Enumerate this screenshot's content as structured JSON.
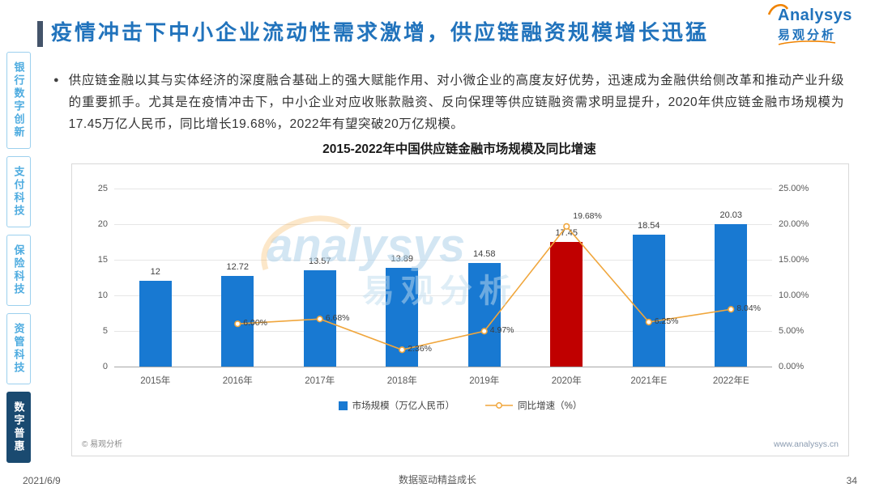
{
  "page": {
    "date": "2021/6/9",
    "slogan": "数据驱动精益成长",
    "number": "34"
  },
  "header": {
    "title": "疫情冲击下中小企业流动性需求激增，供应链融资规模增长迅猛",
    "logo_en": "Analysys",
    "logo_cn": "易观分析",
    "accent_color": "#44546A",
    "title_color": "#2173BC"
  },
  "sidebar": {
    "items": [
      {
        "id": "banking",
        "label": "银行数字创新",
        "active": false
      },
      {
        "id": "payment",
        "label": "支付科技",
        "active": false
      },
      {
        "id": "insurance",
        "label": "保险科技",
        "active": false
      },
      {
        "id": "asset",
        "label": "资管科技",
        "active": false
      },
      {
        "id": "inclusion",
        "label": "数字普惠",
        "active": true
      }
    ]
  },
  "body": {
    "bullet_glyph": "●",
    "bullet_text": "供应链金融以其与实体经济的深度融合基础上的强大赋能作用、对小微企业的高度友好优势，迅速成为金融供给侧改革和推动产业升级的重要抓手。尤其是在疫情冲击下，中小企业对应收账款融资、反向保理等供应链融资需求明显提升，2020年供应链金融市场规模为17.45万亿人民币，同比增长19.68%，2022年有望突破20万亿规模。"
  },
  "chart": {
    "source_left": "© 易观分析",
    "source_right": "www.analysys.cn",
    "watermark_en": "analysys",
    "watermark_cn": "易观分析"
  },
  "chart_data": {
    "type": "bar+line",
    "title": "2015-2022年中国供应链金融市场规模及同比增速",
    "categories": [
      "2015年",
      "2016年",
      "2017年",
      "2018年",
      "2019年",
      "2020年",
      "2021年E",
      "2022年E"
    ],
    "series": [
      {
        "name": "市场规模（万亿人民币）",
        "type": "bar",
        "axis": "left",
        "values": [
          12,
          12.72,
          13.57,
          13.89,
          14.58,
          17.45,
          18.54,
          20.03
        ]
      },
      {
        "name": "同比增速（%）",
        "type": "line",
        "axis": "right",
        "values": [
          null,
          6.0,
          6.68,
          2.36,
          4.97,
          19.68,
          6.25,
          8.04
        ]
      }
    ],
    "bar_labels": [
      "12",
      "12.72",
      "13.57",
      "13.89",
      "14.58",
      "17.45",
      "18.54",
      "20.03"
    ],
    "line_labels": [
      null,
      "6.00%",
      "6.68%",
      "2.36%",
      "4.97%",
      "19.68%",
      "6.25%",
      "8.04%"
    ],
    "bar_colors": [
      "#1879D2",
      "#1879D2",
      "#1879D2",
      "#1879D2",
      "#1879D2",
      "#C00000",
      "#1879D2",
      "#1879D2"
    ],
    "line_color": "#F0A63C",
    "left_axis": {
      "min": 0,
      "max": 25,
      "ticks": [
        "25",
        "20",
        "15",
        "10",
        "5",
        "0"
      ]
    },
    "right_axis": {
      "min": 0,
      "max": 25,
      "ticks": [
        "25.00%",
        "20.00%",
        "15.00%",
        "10.00%",
        "5.00%",
        "0.00%"
      ]
    },
    "grid": true,
    "legend_position": "bottom",
    "legend": [
      {
        "label": "市场规模（万亿人民币）",
        "type": "bar",
        "color": "#1879D2"
      },
      {
        "label": "同比增速（%）",
        "type": "line",
        "color": "#F0A63C"
      }
    ]
  }
}
